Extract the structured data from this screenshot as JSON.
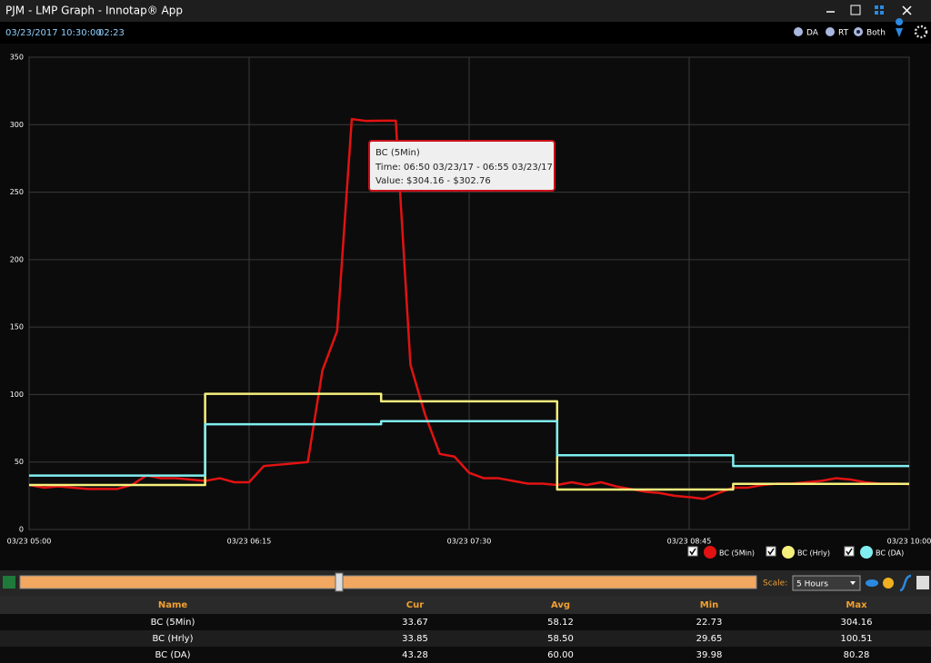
{
  "window": {
    "title": "PJM - LMP Graph - Innotap® App"
  },
  "header": {
    "datetime": "03/23/2017 10:30:00",
    "elapsed": "02:23",
    "modes": [
      "DA",
      "RT",
      "Both"
    ]
  },
  "chart_data": {
    "type": "line",
    "xlim": [
      "03/23 05:00",
      "03/23 10:00"
    ],
    "xticks": [
      "03/23 05:00",
      "03/23 06:15",
      "03/23 07:30",
      "03/23 08:45",
      "03/23 10:00"
    ],
    "ylim": [
      0,
      350
    ],
    "yticks": [
      0,
      50,
      100,
      150,
      200,
      250,
      300,
      350
    ],
    "grid": true,
    "series": [
      {
        "name": "BC (5Min)",
        "color": "#e21212",
        "step": false,
        "x": [
          "03/23 05:00",
          "03/23 05:05",
          "03/23 05:10",
          "03/23 05:15",
          "03/23 05:20",
          "03/23 05:25",
          "03/23 05:30",
          "03/23 05:35",
          "03/23 05:40",
          "03/23 05:45",
          "03/23 05:50",
          "03/23 05:55",
          "03/23 06:00",
          "03/23 06:05",
          "03/23 06:10",
          "03/23 06:15",
          "03/23 06:20",
          "03/23 06:25",
          "03/23 06:30",
          "03/23 06:35",
          "03/23 06:40",
          "03/23 06:45",
          "03/23 06:50",
          "03/23 06:55",
          "03/23 07:00",
          "03/23 07:05",
          "03/23 07:10",
          "03/23 07:15",
          "03/23 07:20",
          "03/23 07:25",
          "03/23 07:30",
          "03/23 07:35",
          "03/23 07:40",
          "03/23 07:45",
          "03/23 07:50",
          "03/23 07:55",
          "03/23 08:00",
          "03/23 08:05",
          "03/23 08:10",
          "03/23 08:15",
          "03/23 08:20",
          "03/23 08:25",
          "03/23 08:30",
          "03/23 08:35",
          "03/23 08:40",
          "03/23 08:45",
          "03/23 08:50",
          "03/23 08:55",
          "03/23 09:00",
          "03/23 09:05",
          "03/23 09:10",
          "03/23 09:15",
          "03/23 09:20",
          "03/23 09:25",
          "03/23 09:30",
          "03/23 09:35",
          "03/23 09:40",
          "03/23 09:45",
          "03/23 09:50",
          "03/23 09:55",
          "03/23 10:00"
        ],
        "values": [
          33,
          31,
          32,
          31,
          30,
          30,
          30,
          33,
          40,
          38,
          38,
          37,
          36,
          38,
          35,
          35,
          47,
          48,
          49,
          50,
          118,
          147,
          304.16,
          302.76,
          303,
          303,
          122,
          85,
          56,
          54,
          42,
          38,
          38,
          36,
          34,
          34,
          33,
          35,
          33,
          35,
          32,
          30,
          28,
          27,
          25,
          24,
          22.73,
          27,
          31,
          31,
          33,
          34,
          34,
          35,
          36,
          38,
          37,
          35,
          34,
          34,
          33.67
        ]
      },
      {
        "name": "BC (Hrly)",
        "color": "#f6f07c",
        "step": true,
        "x": [
          "03/23 05:00",
          "03/23 06:00",
          "03/23 07:00",
          "03/23 08:00",
          "03/23 09:00",
          "03/23 10:00"
        ],
        "values": [
          33,
          100.51,
          95,
          29.65,
          33.85,
          33.85
        ]
      },
      {
        "name": "BC (DA)",
        "color": "#80eef0",
        "step": true,
        "x": [
          "03/23 05:00",
          "03/23 06:00",
          "03/23 07:00",
          "03/23 08:00",
          "03/23 09:00",
          "03/23 10:00"
        ],
        "values": [
          40,
          78,
          80.28,
          55,
          47,
          47
        ]
      }
    ]
  },
  "tooltip": {
    "title": "BC (5Min)",
    "time": "Time: 06:50 03/23/17 - 06:55 03/23/17",
    "value": "Value: $304.16 - $302.76"
  },
  "controls": {
    "scale_label": "Scale:",
    "scale_value": "5 Hours"
  },
  "table": {
    "columns": [
      "Name",
      "Cur",
      "Avg",
      "Min",
      "Max"
    ],
    "rows": [
      [
        "BC (5Min)",
        "33.67",
        "58.12",
        "22.73",
        "304.16"
      ],
      [
        "BC (Hrly)",
        "33.85",
        "58.50",
        "29.65",
        "100.51"
      ],
      [
        "BC (DA)",
        "43.28",
        "60.00",
        "39.98",
        "80.28"
      ]
    ]
  }
}
